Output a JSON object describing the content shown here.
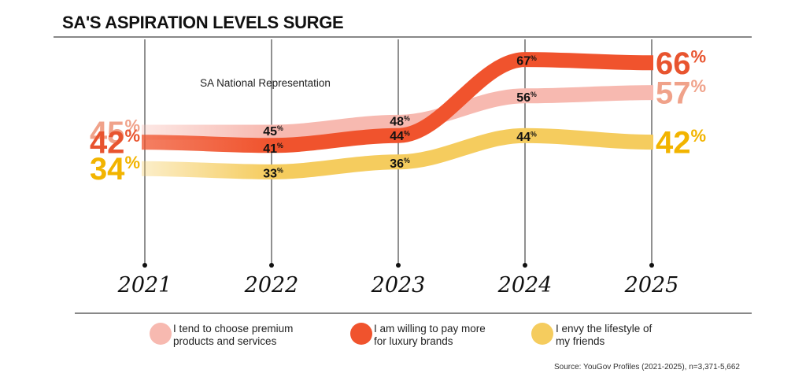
{
  "chart_data": {
    "type": "line",
    "title": "SA'S ASPIRATION LEVELS SURGE",
    "subtitle": "SA National Representation",
    "x": [
      "2021",
      "2022",
      "2023",
      "2024",
      "2025"
    ],
    "unit": "%",
    "series": [
      {
        "name": "I tend to choose premium products and services",
        "values": [
          45,
          45,
          48,
          56,
          57
        ],
        "color": "#f7b9b0"
      },
      {
        "name": "I am willing to pay more for luxury brands",
        "values": [
          42,
          41,
          44,
          67,
          66
        ],
        "color": "#f0532d"
      },
      {
        "name": "I envy the lifestyle of my friends",
        "values": [
          34,
          33,
          36,
          44,
          42
        ],
        "color": "#f5cc5e"
      }
    ],
    "start_label_colors": [
      "#f0a28a",
      "#e8542f",
      "#f2b400"
    ],
    "end_label_colors": [
      "#f0a28a",
      "#e8542f",
      "#f2b400"
    ],
    "grid": true,
    "legend": "bottom",
    "source": "Source: YouGov Profiles (2021-2025), n=3,371-5,662"
  },
  "legend": {
    "items": [
      {
        "line1": "I tend to choose premium",
        "line2": "products and services"
      },
      {
        "line1": "I am willing to pay more",
        "line2": "for luxury brands"
      },
      {
        "line1": "I envy the lifestyle of",
        "line2": "my friends"
      }
    ]
  }
}
